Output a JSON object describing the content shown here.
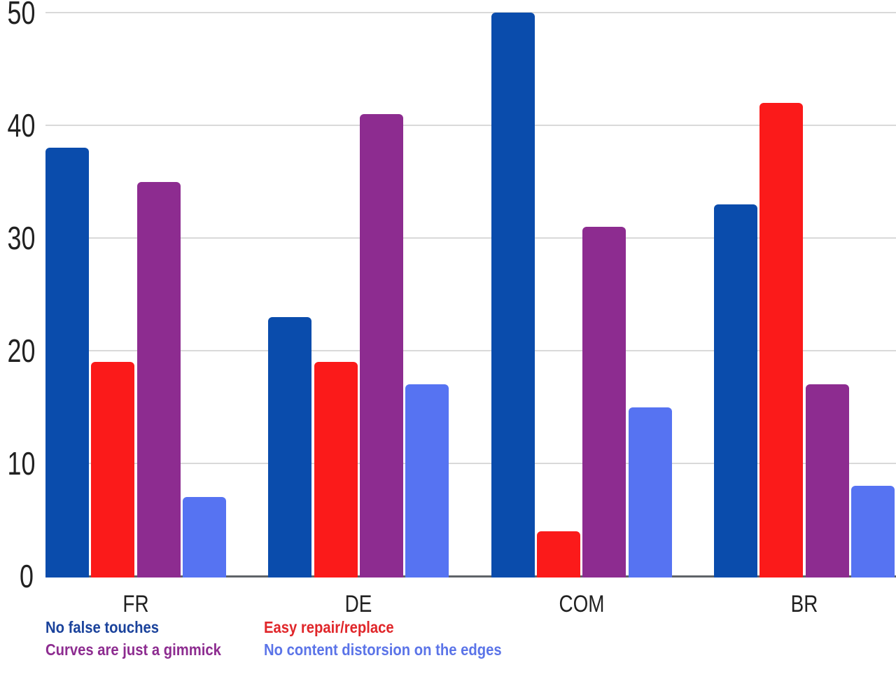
{
  "chart_data": {
    "type": "bar",
    "title": "",
    "xlabel": "",
    "ylabel": "",
    "categories": [
      "FR",
      "DE",
      "COM",
      "BR"
    ],
    "series": [
      {
        "name": "No false touches",
        "color": "#0a4cac",
        "legend_color": "#1a429b",
        "values": [
          38,
          23,
          50,
          33
        ]
      },
      {
        "name": "Easy repair/replace",
        "color": "#fb1a1a",
        "legend_color": "#e0262a",
        "values": [
          19,
          19,
          4,
          42
        ]
      },
      {
        "name": "Curves are just a gimmick",
        "color": "#8d2c90",
        "legend_color": "#8d2c90",
        "values": [
          35,
          41,
          31,
          17
        ]
      },
      {
        "name": "No content distorsion on the edges",
        "color": "#5673f2",
        "legend_color": "#5b74e8",
        "values": [
          7,
          17,
          15,
          8
        ]
      }
    ],
    "ylim": [
      0,
      50
    ],
    "yticks": [
      0,
      10,
      20,
      30,
      40,
      50
    ],
    "grid": true,
    "legend_position": "bottom-left-two-columns"
  },
  "colors": {
    "background": "#ffffff",
    "gridline": "#d9d9d9",
    "axisline": "#5f6368",
    "tick_text": "#212121"
  }
}
